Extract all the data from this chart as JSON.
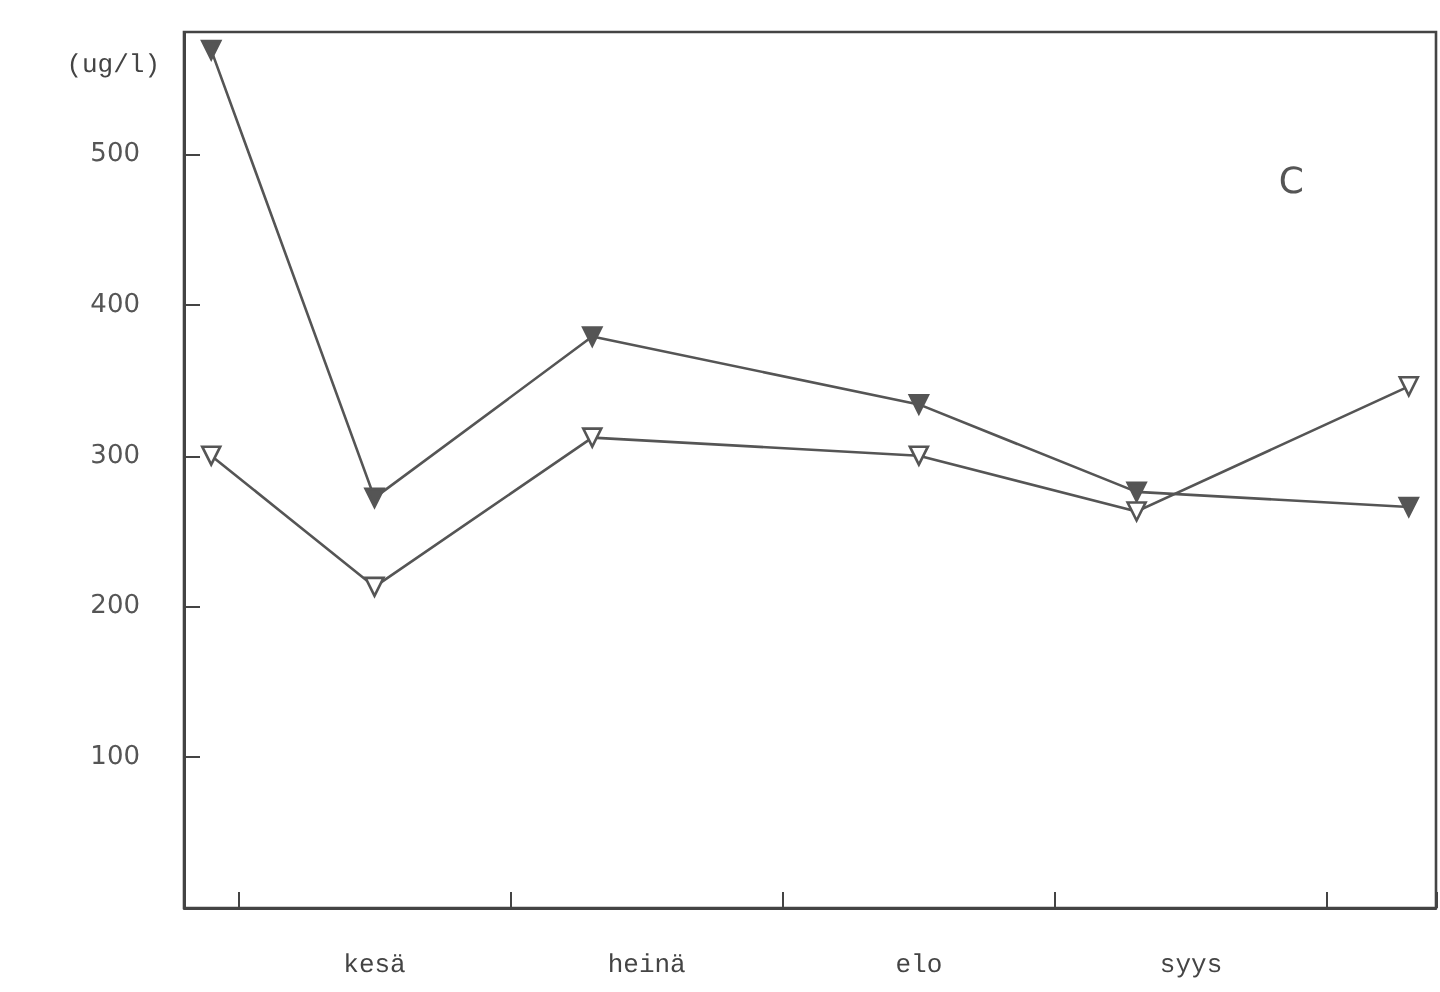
{
  "chart_data": {
    "type": "line",
    "ylabel": "(ug/l)",
    "annotations": [
      "C"
    ],
    "categories": [
      null,
      null,
      null,
      "kesä",
      null,
      null,
      null,
      null,
      "heinä",
      null,
      null,
      null,
      null,
      "elo",
      null,
      null,
      null,
      null,
      "syys",
      null,
      null,
      null,
      null
    ],
    "series": [
      {
        "color": "#555555",
        "values": [
          569,
          null,
          null,
          272,
          null,
          null,
          null,
          379,
          null,
          null,
          null,
          null,
          null,
          334,
          null,
          null,
          null,
          276,
          null,
          null,
          null,
          null,
          266
        ]
      },
      {
        "color": "#555555",
        "values": [
          300,
          null,
          null,
          213,
          null,
          null,
          null,
          312,
          null,
          null,
          null,
          null,
          null,
          300,
          null,
          null,
          null,
          263,
          null,
          null,
          null,
          null,
          346
        ]
      }
    ],
    "ylim": [
      0,
      581
    ],
    "yticks": [
      100,
      200,
      300,
      400,
      500
    ],
    "grid": false,
    "marker": "triangle",
    "line_style": "solid"
  }
}
